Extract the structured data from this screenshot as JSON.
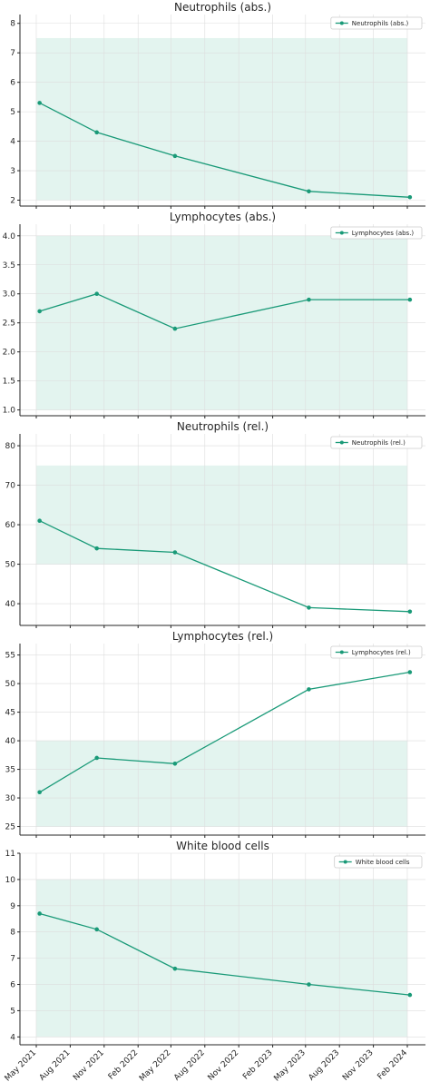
{
  "theme": {
    "line": "#1a9a78",
    "band": "#e3f4ef",
    "grid": "#dddddd",
    "axis": "#262626"
  },
  "x_ticks": [
    "May 2021",
    "Aug 2021",
    "Nov 2021",
    "Feb 2022",
    "May 2022",
    "Aug 2022",
    "Nov 2022",
    "Feb 2023",
    "May 2023",
    "Aug 2023",
    "Nov 2023",
    "Feb 2024"
  ],
  "chart_data": [
    {
      "type": "line",
      "title": "Neutrophils (abs.)",
      "legend": "Neutrophils (abs.)",
      "legend_position": "top-right",
      "x": [
        "2021-05-10",
        "2021-10-12",
        "2022-05-12",
        "2023-05-10",
        "2024-02-08"
      ],
      "values": [
        5.3,
        4.3,
        3.5,
        2.3,
        2.1
      ],
      "reference_range": [
        2,
        7.5
      ],
      "ylim": [
        1.8,
        8.3
      ],
      "yticks": [
        2,
        3,
        4,
        5,
        6,
        7,
        8
      ],
      "ytick_labels": [
        "2",
        "3",
        "4",
        "5",
        "6",
        "7",
        "8"
      ],
      "grid": true
    },
    {
      "type": "line",
      "title": "Lymphocytes (abs.)",
      "legend": "Lymphocytes (abs.)",
      "legend_position": "top-right",
      "x": [
        "2021-05-10",
        "2021-10-12",
        "2022-05-12",
        "2023-05-10",
        "2024-02-08"
      ],
      "values": [
        2.7,
        3.0,
        2.4,
        2.9,
        2.9
      ],
      "reference_range": [
        1.0,
        4.0
      ],
      "ylim": [
        0.9,
        4.2
      ],
      "yticks": [
        1.0,
        1.5,
        2.0,
        2.5,
        3.0,
        3.5,
        4.0
      ],
      "ytick_labels": [
        "1.0",
        "1.5",
        "2.0",
        "2.5",
        "3.0",
        "3.5",
        "4.0"
      ],
      "grid": true
    },
    {
      "type": "line",
      "title": "Neutrophils (rel.)",
      "legend": "Neutrophils (rel.)",
      "legend_position": "top-right",
      "x": [
        "2021-05-10",
        "2021-10-12",
        "2022-05-12",
        "2023-05-10",
        "2024-02-08"
      ],
      "values": [
        61,
        54,
        53,
        39,
        38
      ],
      "reference_range": [
        50,
        75
      ],
      "ylim": [
        34.5,
        83
      ],
      "yticks": [
        40,
        50,
        60,
        70,
        80
      ],
      "ytick_labels": [
        "40",
        "50",
        "60",
        "70",
        "80"
      ],
      "grid": true
    },
    {
      "type": "line",
      "title": "Lymphocytes (rel.)",
      "legend": "Lymphocytes (rel.)",
      "legend_position": "top-right",
      "x": [
        "2021-05-10",
        "2021-10-12",
        "2022-05-12",
        "2023-05-10",
        "2024-02-08"
      ],
      "values": [
        31,
        37,
        36,
        49,
        52
      ],
      "reference_range": [
        25,
        40
      ],
      "ylim": [
        23.5,
        57
      ],
      "yticks": [
        25,
        30,
        35,
        40,
        45,
        50,
        55
      ],
      "ytick_labels": [
        "25",
        "30",
        "35",
        "40",
        "45",
        "50",
        "55"
      ],
      "grid": true
    },
    {
      "type": "line",
      "title": "White blood cells",
      "legend": "White blood cells",
      "legend_position": "top-right",
      "x": [
        "2021-05-10",
        "2021-10-12",
        "2022-05-12",
        "2023-05-10",
        "2024-02-08"
      ],
      "values": [
        8.7,
        8.1,
        6.6,
        6.0,
        5.6
      ],
      "reference_range": [
        4,
        10
      ],
      "ylim": [
        3.7,
        11.0
      ],
      "yticks": [
        4,
        5,
        6,
        7,
        8,
        9,
        10,
        11
      ],
      "ytick_labels": [
        "4",
        "5",
        "6",
        "7",
        "8",
        "9",
        "10",
        "11"
      ],
      "grid": true
    }
  ]
}
